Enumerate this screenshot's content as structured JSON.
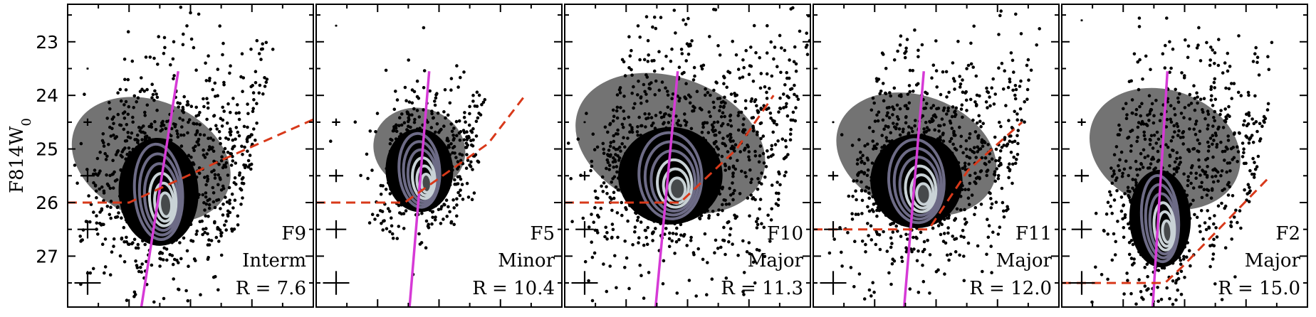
{
  "chart_data": {
    "type": "scatter",
    "ylabel": "F814W",
    "ylabel_subscript": "0",
    "ylim": [
      27.95,
      22.3
    ],
    "y_ticks": [
      "23",
      "24",
      "25",
      "26",
      "27"
    ],
    "colors": {
      "points": "#000000",
      "isochrone": "#d63ad6",
      "completeness": "#d8391a",
      "contour_dark": "#6d6b86",
      "contour_light": "#c9d2d6"
    },
    "panels": [
      {
        "field": "F9",
        "category": "Interm",
        "r_label": "R = 7.6",
        "iso_x": [
          0.45,
          0.3
        ],
        "iso_y": [
          23.55,
          27.95
        ],
        "cut_x": [
          0.0,
          0.25,
          0.63,
          1.0
        ],
        "cut_y": [
          26.0,
          26.0,
          25.2,
          24.45
        ],
        "errbar_y": [
          23.5,
          24.5,
          25.5,
          26.5,
          27.5
        ],
        "clump": {
          "x": 0.37,
          "y": 25.8,
          "w": 0.13,
          "h": 1.55,
          "r": -0.05
        },
        "spread": {
          "x": 0.34,
          "y": 25.2,
          "w": 0.8,
          "h": 2.3,
          "r": -0.4
        },
        "density": 1.0
      },
      {
        "field": "F5",
        "category": "Minor",
        "r_label": "R = 10.4",
        "iso_x": [
          0.46,
          0.38
        ],
        "iso_y": [
          23.55,
          27.95
        ],
        "cut_x": [
          0.0,
          0.36,
          0.7,
          0.85
        ],
        "cut_y": [
          26.0,
          26.0,
          24.9,
          24.0
        ],
        "errbar_y": [
          22.7,
          24.5,
          25.5,
          26.5,
          27.5
        ],
        "clump": {
          "x": 0.42,
          "y": 25.4,
          "w": 0.11,
          "h": 1.2,
          "r": -0.05
        },
        "spread": {
          "x": 0.42,
          "y": 25.0,
          "w": 0.45,
          "h": 1.6,
          "r": -0.3
        },
        "density": 0.55
      },
      {
        "field": "F10",
        "category": "Major",
        "r_label": "R = 11.3",
        "iso_x": [
          0.46,
          0.37
        ],
        "iso_y": [
          23.55,
          27.95
        ],
        "cut_x": [
          0.0,
          0.47,
          0.7,
          0.85
        ],
        "cut_y": [
          26.0,
          26.0,
          25.0,
          24.0
        ],
        "errbar_y": [
          24.5,
          25.5,
          26.5,
          27.5
        ],
        "clump": {
          "x": 0.43,
          "y": 25.5,
          "w": 0.17,
          "h": 1.4,
          "r": -0.05
        },
        "spread": {
          "x": 0.43,
          "y": 24.9,
          "w": 0.95,
          "h": 2.6,
          "r": -0.35
        },
        "density": 1.2
      },
      {
        "field": "F11",
        "category": "Major",
        "r_label": "R = 12.0",
        "iso_x": [
          0.45,
          0.37
        ],
        "iso_y": [
          23.55,
          27.95
        ],
        "cut_x": [
          0.0,
          0.47,
          0.63,
          0.85
        ],
        "cut_y": [
          26.5,
          26.5,
          25.4,
          24.5
        ],
        "errbar_y": [
          24.5,
          25.5,
          26.5,
          27.5
        ],
        "clump": {
          "x": 0.42,
          "y": 25.6,
          "w": 0.15,
          "h": 1.35,
          "r": -0.05
        },
        "spread": {
          "x": 0.42,
          "y": 25.1,
          "w": 0.8,
          "h": 2.3,
          "r": -0.35
        },
        "density": 1.0
      },
      {
        "field": "F2",
        "category": "Major",
        "r_label": "R = 15.0",
        "iso_x": [
          0.43,
          0.37
        ],
        "iso_y": [
          23.55,
          27.95
        ],
        "cut_x": [
          0.0,
          0.42,
          0.49,
          0.85
        ],
        "cut_y": [
          27.5,
          27.5,
          27.2,
          25.5
        ],
        "errbar_y": [
          22.6,
          24.5,
          25.5,
          26.5,
          27.5
        ],
        "clump": {
          "x": 0.4,
          "y": 26.3,
          "w": 0.1,
          "h": 1.4,
          "r": -0.03
        },
        "spread": {
          "x": 0.42,
          "y": 25.0,
          "w": 0.75,
          "h": 2.3,
          "r": -0.35
        },
        "density": 0.85
      }
    ]
  }
}
